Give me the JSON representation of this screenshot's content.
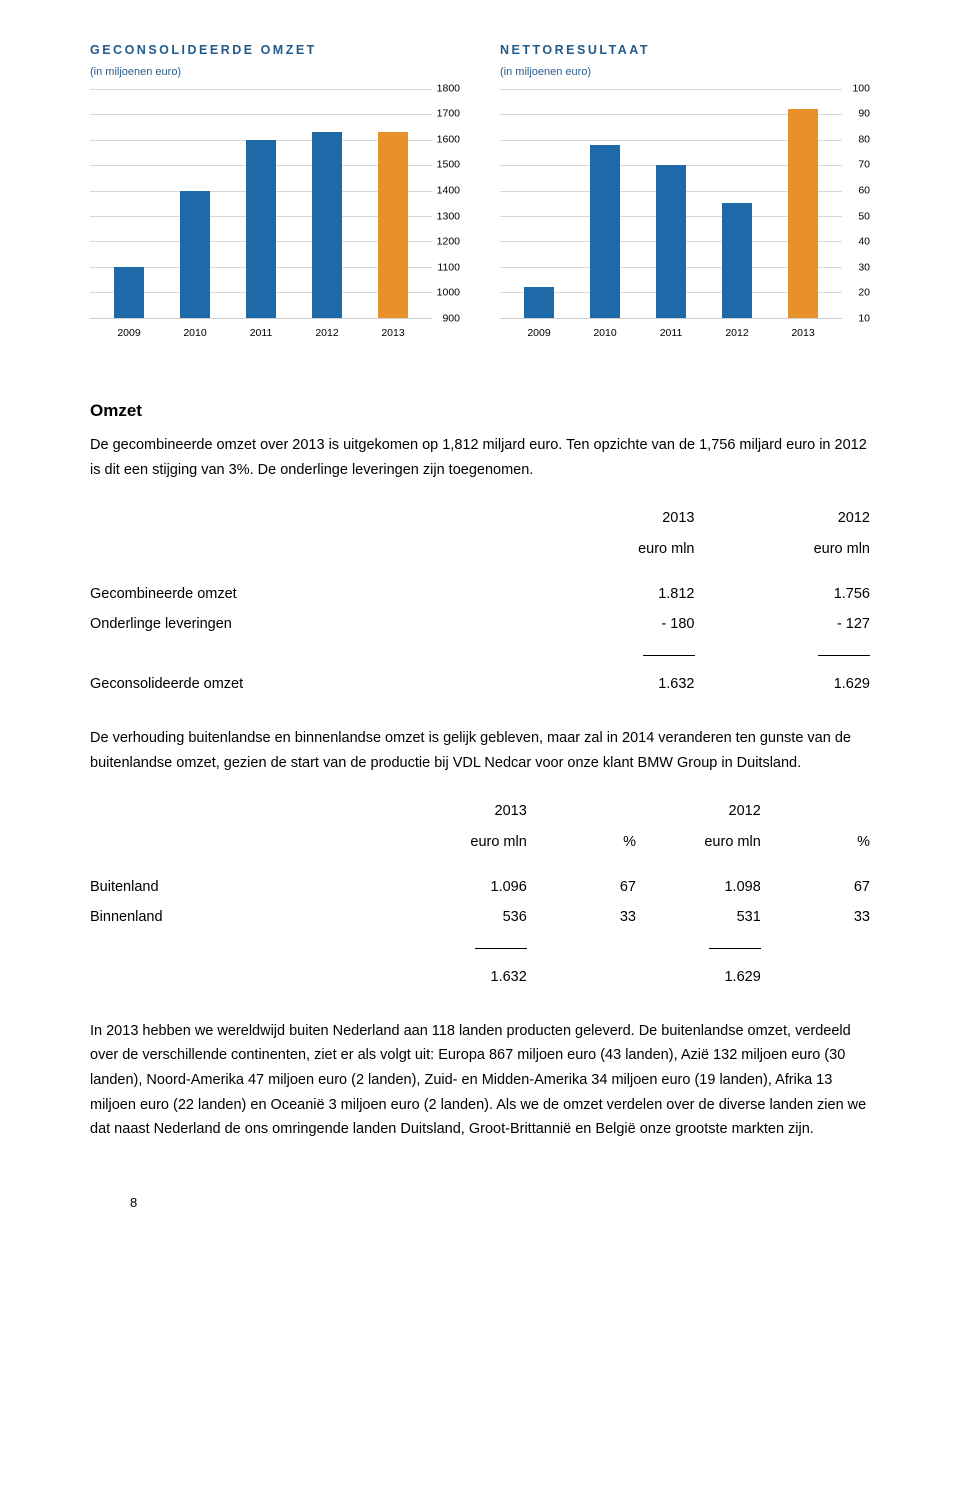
{
  "chart1": {
    "title": "GECONSOLIDEERDE OMZET",
    "subtitle": "(in miljoenen euro)",
    "type": "bar",
    "categories": [
      "2009",
      "2010",
      "2011",
      "2012",
      "2013"
    ],
    "values": [
      1100,
      1400,
      1600,
      1630,
      1630
    ],
    "highlight_index": 4,
    "ymin": 900,
    "ymax": 1800,
    "ystep": 100,
    "bar_color": "#1e69a8",
    "highlight_color": "#e8912b",
    "grid_color": "#d8d8d8",
    "tick_fontsize": 10.5
  },
  "chart2": {
    "title": "NETTORESULTAAT",
    "subtitle": "(in miljoenen euro)",
    "type": "bar",
    "categories": [
      "2009",
      "2010",
      "2011",
      "2012",
      "2013"
    ],
    "values": [
      22,
      78,
      70,
      55,
      92
    ],
    "highlight_index": 4,
    "ymin": 10,
    "ymax": 100,
    "ystep": 10,
    "bar_color": "#1e69a8",
    "highlight_color": "#e8912b",
    "grid_color": "#d8d8d8",
    "tick_fontsize": 10.5
  },
  "section1": {
    "heading": "Omzet",
    "para": "De gecombineerde omzet over 2013 is uitgekomen op 1,812 miljard euro. Ten opzichte van de 1,756 miljard euro in 2012 is dit een stijging van 3%. De onderlinge leveringen zijn toegenomen."
  },
  "table1": {
    "col_headers": [
      "",
      "2013",
      "2012"
    ],
    "col_sub": [
      "",
      "euro mln",
      "euro mln"
    ],
    "rows": [
      [
        "Gecombineerde omzet",
        "1.812",
        "1.756"
      ],
      [
        "Onderlinge leveringen",
        "- 180",
        "- 127"
      ]
    ],
    "total_row": [
      "Geconsolideerde omzet",
      "1.632",
      "1.629"
    ]
  },
  "para2": "De verhouding buitenlandse en binnenlandse omzet is gelijk gebleven, maar zal in 2014 veranderen ten gunste van de buitenlandse omzet, gezien de start van de productie bij VDL Nedcar voor onze klant BMW Group in Duitsland.",
  "table2": {
    "col_headers": [
      "",
      "2013",
      "",
      "2012",
      ""
    ],
    "col_sub": [
      "",
      "euro mln",
      "%",
      "euro mln",
      "%"
    ],
    "rows": [
      [
        "Buitenland",
        "1.096",
        "67",
        "1.098",
        "67"
      ],
      [
        "Binnenland",
        "536",
        "33",
        "531",
        "33"
      ]
    ],
    "total_row": [
      "",
      "1.632",
      "",
      "1.629",
      ""
    ]
  },
  "para3": "In 2013 hebben we wereldwijd buiten Nederland aan 118 landen producten geleverd. De buitenlandse omzet, verdeeld over de verschillende continenten, ziet er als volgt uit: Europa 867 miljoen euro (43 landen), Azië 132 miljoen euro (30 landen), Noord-Amerika 47 miljoen euro (2 landen), Zuid- en Midden-Amerika 34 miljoen euro (19 landen), Afrika 13 miljoen euro (22 landen) en Oceanië 3 miljoen euro (2 landen). Als we de omzet verdelen over de diverse landen zien we dat naast Nederland de ons omringende landen Duitsland, Groot-Brittannië en België onze grootste markten zijn.",
  "page_number": "8",
  "colors": {
    "title_color": "#225a8c",
    "body_color": "#000000",
    "background": "#ffffff"
  }
}
